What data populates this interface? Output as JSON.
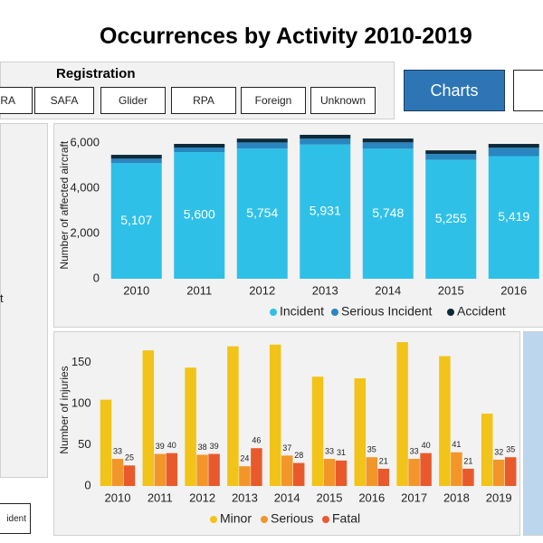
{
  "header": {
    "title": "Occurrences by Activity 2010-2019"
  },
  "filters": {
    "title": "Registration",
    "buttons": [
      "RA",
      "SAFA",
      "Glider",
      "RPA",
      "Foreign",
      "Unknown"
    ]
  },
  "nav": {
    "charts_button": "Charts"
  },
  "side_panel": {
    "text": "t",
    "button": "ident"
  },
  "chart_data": [
    {
      "type": "bar",
      "stacked": true,
      "y_label": "Number of affected aircraft",
      "categories": [
        "2010",
        "2011",
        "2012",
        "2013",
        "2014",
        "2015",
        "2016"
      ],
      "series": [
        {
          "name": "Incident",
          "color": "#2fc0e8",
          "values": [
            5107,
            5600,
            5754,
            5931,
            5748,
            5255,
            5419
          ],
          "value_labels": [
            "5,107",
            "5,600",
            "5,754",
            "5,931",
            "5,748",
            "5,255",
            "5,419"
          ]
        },
        {
          "name": "Serious Incident",
          "color": "#2a86c0",
          "values": [
            200,
            200,
            270,
            260,
            280,
            260,
            370
          ]
        },
        {
          "name": "Accident",
          "color": "#0d2a3a",
          "values": [
            170,
            160,
            170,
            170,
            170,
            160,
            170
          ]
        }
      ],
      "ylim": [
        0,
        6500
      ],
      "yticks": [
        0,
        {
          "value": 2000,
          "label": "2,000"
        },
        {
          "value": 4000,
          "label": "4,000"
        },
        {
          "value": 6000,
          "label": "6,000"
        }
      ],
      "grid": false
    },
    {
      "type": "bar",
      "stacked": false,
      "y_label": "Number of injuries",
      "categories": [
        "2010",
        "2011",
        "2012",
        "2013",
        "2014",
        "2015",
        "2016",
        "2017",
        "2018",
        "2019"
      ],
      "series": [
        {
          "name": "Minor",
          "color": "#f2c318",
          "values": [
            105,
            165,
            144,
            170,
            172,
            133,
            131,
            175,
            158,
            88
          ],
          "show_labels": false
        },
        {
          "name": "Serious",
          "color": "#f2962a",
          "values": [
            33,
            39,
            38,
            24,
            37,
            33,
            35,
            33,
            41,
            32
          ],
          "show_labels": true
        },
        {
          "name": "Fatal",
          "color": "#e85a2c",
          "values": [
            25,
            40,
            39,
            46,
            28,
            31,
            21,
            40,
            21,
            35
          ],
          "show_labels": true
        }
      ],
      "ylim": [
        0,
        185
      ],
      "yticks": [
        0,
        50,
        100,
        150
      ],
      "grid": false
    }
  ]
}
